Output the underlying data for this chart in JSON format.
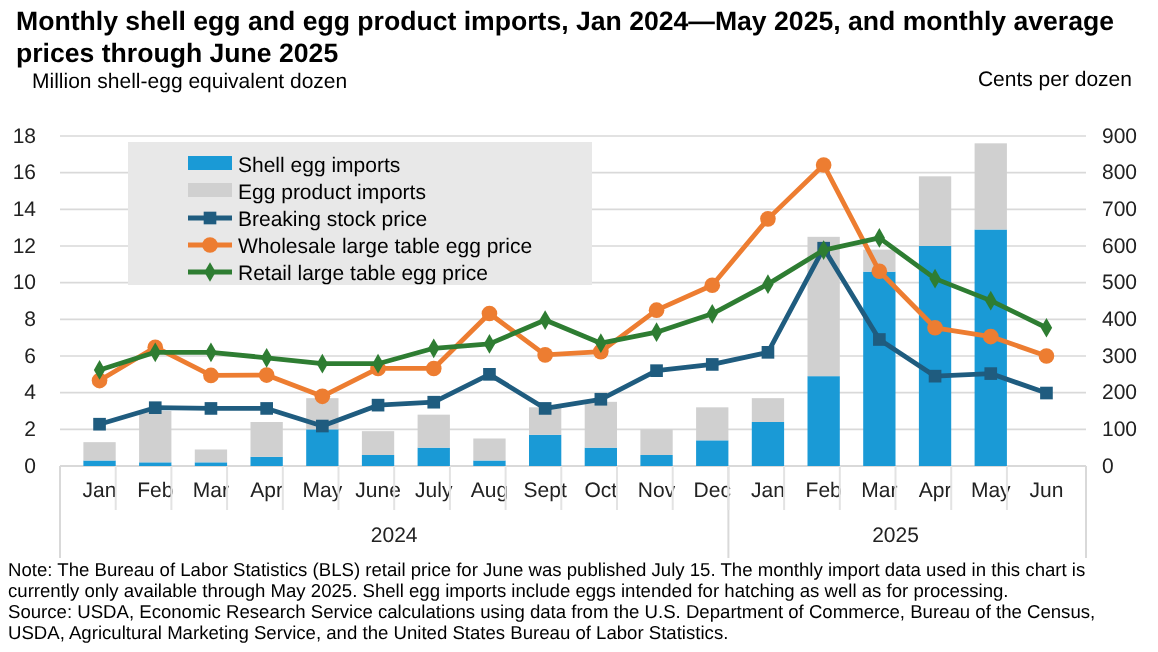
{
  "chart_data": {
    "type": "bar",
    "title": "Monthly shell egg and egg product imports, Jan 2024—May 2025, and monthly average prices through June 2025",
    "ylabel": "Million shell-egg equivalent dozen",
    "y2label": "Cents per dozen",
    "categories": [
      "Jan",
      "Feb",
      "Mar",
      "Apr",
      "May",
      "June",
      "July",
      "Aug",
      "Sept",
      "Oct",
      "Nov",
      "Dec",
      "Jan",
      "Feb",
      "Mar",
      "Apr",
      "May",
      "Jun"
    ],
    "stacked": true,
    "ylim": [
      0,
      18
    ],
    "yticks": [
      0,
      2,
      4,
      6,
      8,
      10,
      12,
      14,
      16,
      18
    ],
    "y2lim": [
      0,
      900
    ],
    "y2ticks": [
      0,
      100,
      200,
      300,
      400,
      500,
      600,
      700,
      800,
      900
    ],
    "grid": "y",
    "legend": "top left",
    "series": [
      {
        "name": "Shell egg imports",
        "color": "#1a9ad6",
        "values": [
          0.3,
          0.2,
          0.2,
          0.5,
          2.0,
          0.6,
          1.0,
          0.3,
          1.7,
          1.0,
          0.6,
          1.4,
          2.4,
          4.9,
          10.6,
          12.0,
          12.9,
          null
        ]
      },
      {
        "name": "Egg product imports",
        "color": "#d0d0d0",
        "values": [
          1.0,
          2.8,
          0.7,
          1.9,
          1.7,
          1.3,
          1.8,
          1.2,
          1.5,
          2.5,
          1.4,
          1.8,
          1.3,
          7.6,
          1.2,
          3.8,
          4.7,
          null
        ]
      },
      {
        "name": "Breaking stock price",
        "type": "line",
        "axis": "y2",
        "marker": "square",
        "color": "#1f5c7f",
        "values": [
          114,
          159,
          157,
          157,
          109,
          166,
          174,
          250,
          157,
          182,
          260,
          277,
          310,
          594,
          345,
          245,
          252,
          199
        ]
      },
      {
        "name": "Wholesale large table egg price",
        "type": "line",
        "axis": "y2",
        "marker": "circle",
        "color": "#ed7d31",
        "values": [
          233,
          324,
          247,
          248,
          190,
          266,
          266,
          416,
          303,
          312,
          425,
          493,
          674,
          821,
          531,
          377,
          353,
          300
        ]
      },
      {
        "name": "Retail large table egg price",
        "type": "line",
        "axis": "y2",
        "marker": "diamond",
        "color": "#2e7d32",
        "values": [
          262,
          310,
          310,
          295,
          279,
          279,
          321,
          333,
          398,
          335,
          365,
          415,
          496,
          589,
          622,
          511,
          451,
          377
        ]
      }
    ],
    "annotations": [
      "2024",
      "2025",
      "Note: The Bureau of Labor Statistics (BLS) retail price for June was published July 15. The monthly import data used in this chart is currently only available through May 2025. Shell egg imports include eggs intended for hatching as well as for processing.",
      "Source: USDA, Economic Research Service calculations using data from the U.S. Department of Commerce, Bureau of the Census, USDA, Agricultural Marketing Service, and the United States Bureau of Labor Statistics."
    ]
  }
}
